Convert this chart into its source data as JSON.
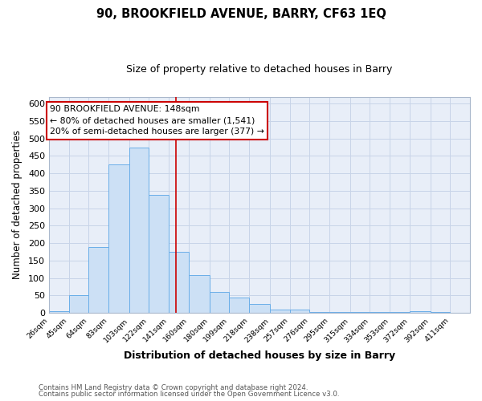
{
  "title": "90, BROOKFIELD AVENUE, BARRY, CF63 1EQ",
  "subtitle": "Size of property relative to detached houses in Barry",
  "xlabel": "Distribution of detached houses by size in Barry",
  "ylabel": "Number of detached properties",
  "bin_labels": [
    "26sqm",
    "45sqm",
    "64sqm",
    "83sqm",
    "103sqm",
    "122sqm",
    "141sqm",
    "160sqm",
    "180sqm",
    "199sqm",
    "218sqm",
    "238sqm",
    "257sqm",
    "276sqm",
    "295sqm",
    "315sqm",
    "334sqm",
    "353sqm",
    "372sqm",
    "392sqm",
    "411sqm"
  ],
  "bin_edges": [
    26,
    45,
    64,
    83,
    103,
    122,
    141,
    160,
    180,
    199,
    218,
    238,
    257,
    276,
    295,
    315,
    334,
    353,
    372,
    392,
    411
  ],
  "bar_heights": [
    5,
    50,
    188,
    425,
    475,
    338,
    175,
    108,
    60,
    45,
    25,
    10,
    10,
    3,
    3,
    2,
    2,
    2,
    5,
    2
  ],
  "bar_fill_color": "#cce0f5",
  "bar_edge_color": "#6aaee8",
  "property_line_x": 148,
  "property_line_color": "#cc0000",
  "annotation_title": "90 BROOKFIELD AVENUE: 148sqm",
  "annotation_line1": "← 80% of detached houses are smaller (1,541)",
  "annotation_line2": "20% of semi-detached houses are larger (377) →",
  "annotation_box_edge": "#cc0000",
  "annotation_box_face": "#ffffff",
  "ylim": [
    0,
    620
  ],
  "yticks": [
    0,
    50,
    100,
    150,
    200,
    250,
    300,
    350,
    400,
    450,
    500,
    550,
    600
  ],
  "grid_color": "#c8d4e8",
  "plot_bg_color": "#e8eef8",
  "fig_bg_color": "#ffffff",
  "footer_line1": "Contains HM Land Registry data © Crown copyright and database right 2024.",
  "footer_line2": "Contains public sector information licensed under the Open Government Licence v3.0."
}
